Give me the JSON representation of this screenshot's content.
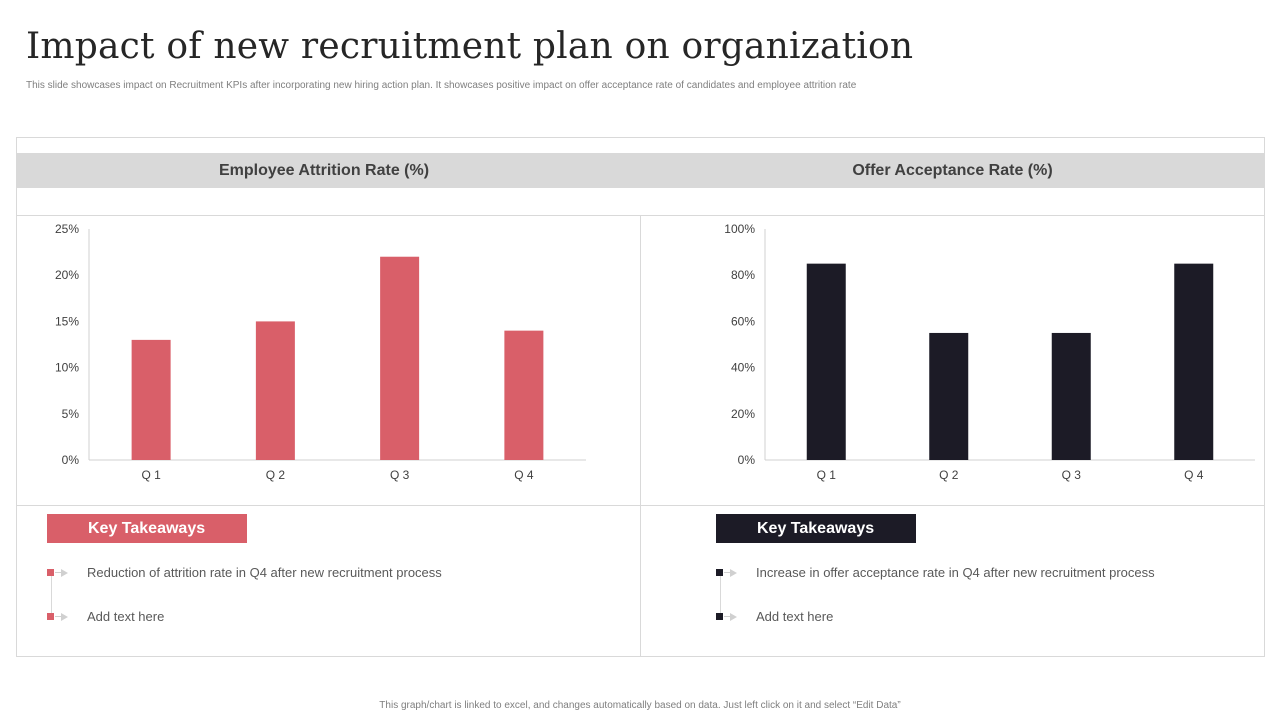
{
  "title": "Impact of new recruitment plan on organization",
  "subtitle": "This slide showcases impact on Recruitment KPIs  after incorporating new hiring action plan. It showcases positive impact on offer acceptance rate of candidates and employee attrition rate",
  "footer": "This graph/chart is linked to excel, and changes automatically based on data. Just left click on it and select “Edit Data”",
  "colors": {
    "red": "#d95f69",
    "dark": "#1c1b26",
    "band": "#d9d9d9"
  },
  "left_panel": {
    "title": "Employee Attrition Rate (%)",
    "takeaway_title": "Key Takeaways",
    "bullets": [
      "Reduction of attrition rate in Q4 after new recruitment process",
      "Add text here"
    ]
  },
  "right_panel": {
    "title": "Offer Acceptance Rate (%)",
    "takeaway_title": "Key Takeaways",
    "bullets": [
      "Increase in offer  acceptance rate in Q4 after new recruitment process",
      "Add text here"
    ]
  },
  "chart_data": [
    {
      "type": "bar",
      "title": "Employee Attrition Rate (%)",
      "categories": [
        "Q 1",
        "Q 2",
        "Q 3",
        "Q 4"
      ],
      "values": [
        13,
        15,
        22,
        14
      ],
      "ylim": [
        0,
        25
      ],
      "yticks": [
        0,
        5,
        10,
        15,
        20,
        25
      ],
      "ytick_labels": [
        "0%",
        "5%",
        "10%",
        "15%",
        "20%",
        "25%"
      ],
      "color": "#d95f69",
      "xlabel": "",
      "ylabel": ""
    },
    {
      "type": "bar",
      "title": "Offer Acceptance Rate (%)",
      "categories": [
        "Q 1",
        "Q 2",
        "Q 3",
        "Q 4"
      ],
      "values": [
        85,
        55,
        55,
        85
      ],
      "ylim": [
        0,
        100
      ],
      "yticks": [
        0,
        20,
        40,
        60,
        80,
        100
      ],
      "ytick_labels": [
        "0%",
        "20%",
        "40%",
        "60%",
        "80%",
        "100%"
      ],
      "color": "#1c1b26",
      "xlabel": "",
      "ylabel": ""
    }
  ]
}
